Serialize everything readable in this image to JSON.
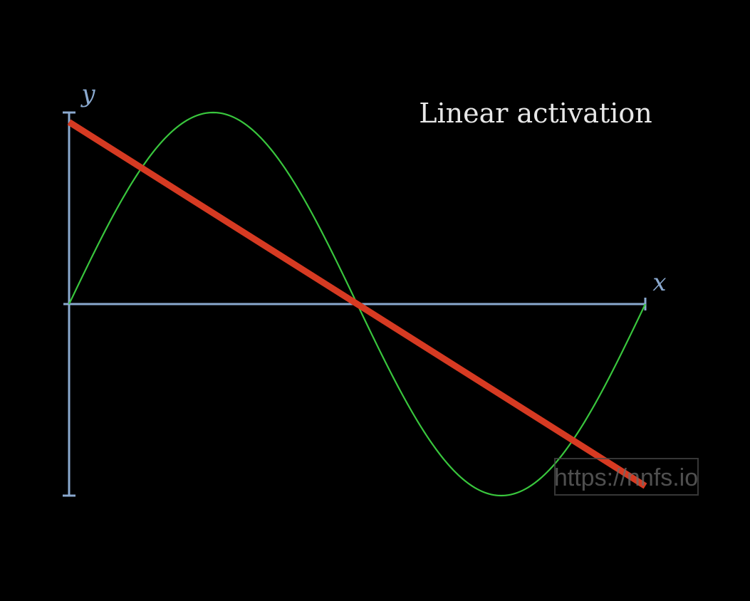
{
  "chart_data": {
    "type": "line",
    "title": "Linear activation",
    "xlabel": "x",
    "ylabel": "y",
    "xlim": [
      0,
      6.2832
    ],
    "ylim": [
      -1,
      1
    ],
    "grid": false,
    "series": [
      {
        "color": "#39c63d",
        "function": "sin(x)",
        "x": [
          0,
          0.7854,
          1.5708,
          2.3562,
          3.1416,
          3.927,
          4.7124,
          5.4978,
          6.2832
        ],
        "y": [
          0,
          0.7071,
          1,
          0.7071,
          0,
          -0.7071,
          -1,
          -0.7071,
          0
        ]
      },
      {
        "color": "#d63a22",
        "x": [
          0,
          6.2832
        ],
        "y": [
          0.95,
          -0.95
        ]
      }
    ]
  },
  "colors": {
    "axis": "#8aa9cf",
    "title": "#e8e8e8",
    "watermark": "#6a6a6a"
  },
  "watermark": "https://nnfs.io"
}
